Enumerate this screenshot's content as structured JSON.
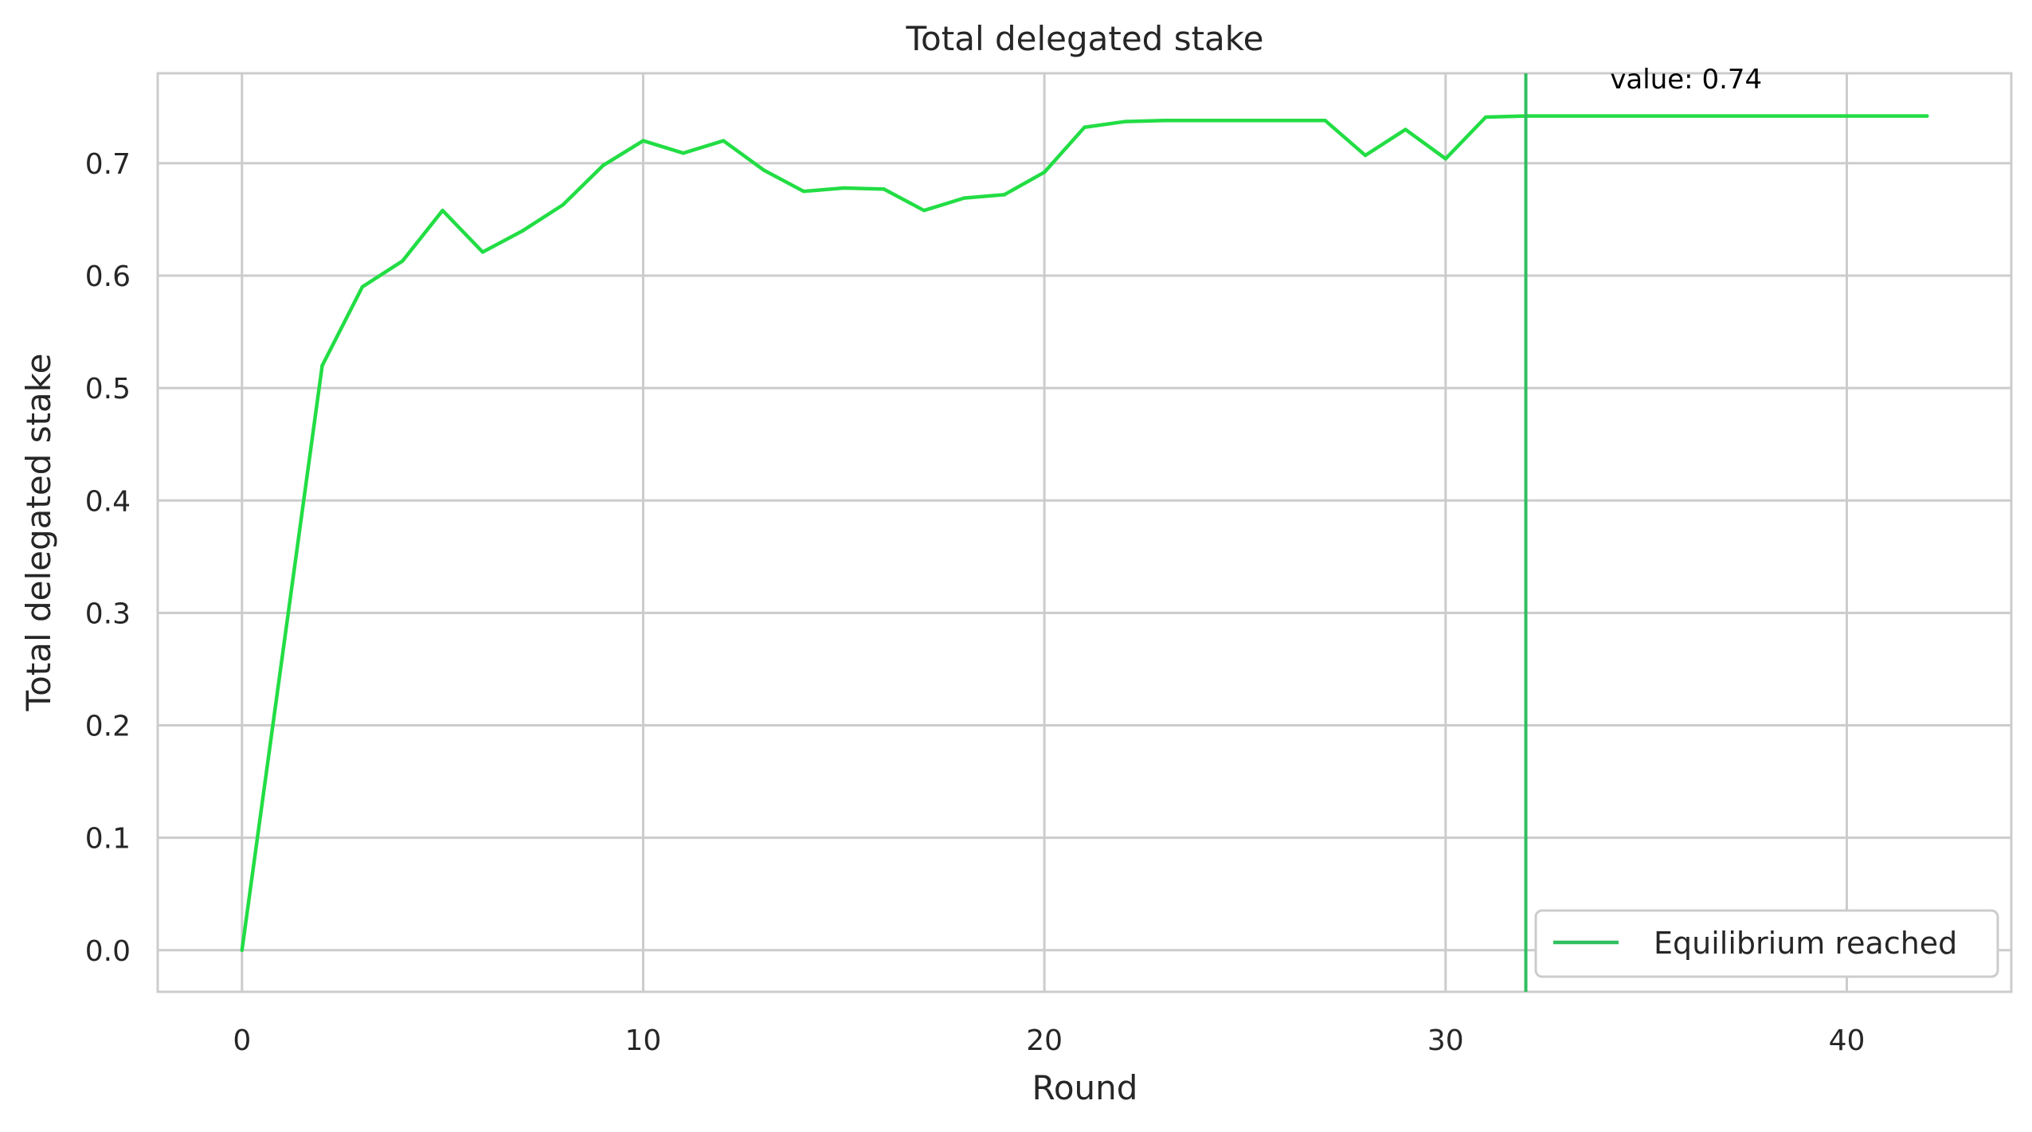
{
  "chart_data": {
    "type": "line",
    "title": "Total delegated stake",
    "xlabel": "Round",
    "ylabel": "Total delegated stake",
    "xlim": [
      -2.1,
      44.1
    ],
    "ylim": [
      -0.037,
      0.78
    ],
    "xticks": [
      0,
      10,
      20,
      30,
      40
    ],
    "yticks": [
      0.0,
      0.1,
      0.2,
      0.3,
      0.4,
      0.5,
      0.6,
      0.7
    ],
    "ytick_labels": [
      "0.0",
      "0.1",
      "0.2",
      "0.3",
      "0.4",
      "0.5",
      "0.6",
      "0.7"
    ],
    "grid": true,
    "legend_position": "lower-right",
    "series": [
      {
        "color": "#22dd44",
        "x": [
          0,
          1,
          2,
          3,
          4,
          5,
          6,
          7,
          8,
          9,
          10,
          11,
          12,
          13,
          14,
          15,
          16,
          17,
          18,
          19,
          20,
          21,
          22,
          23,
          24,
          25,
          26,
          27,
          28,
          29,
          30,
          31,
          32,
          33,
          34,
          35,
          36,
          37,
          38,
          39,
          40,
          41,
          42
        ],
        "values": [
          0.0,
          0.26,
          0.52,
          0.59,
          0.613,
          0.658,
          0.621,
          0.64,
          0.663,
          0.698,
          0.72,
          0.709,
          0.72,
          0.694,
          0.675,
          0.678,
          0.677,
          0.658,
          0.669,
          0.672,
          0.692,
          0.732,
          0.737,
          0.738,
          0.738,
          0.738,
          0.738,
          0.738,
          0.707,
          0.73,
          0.704,
          0.741,
          0.742,
          0.742,
          0.742,
          0.742,
          0.742,
          0.742,
          0.742,
          0.742,
          0.742,
          0.742,
          0.742
        ]
      }
    ],
    "vline": {
      "x": 32,
      "color": "#2fbf5f",
      "label": "Equilibrium reached"
    },
    "annotation": {
      "text": "value: 0.74",
      "x": 34.1,
      "y": 0.775
    }
  }
}
